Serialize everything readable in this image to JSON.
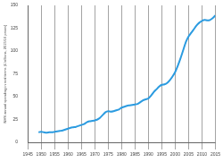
{
  "chart_data": {
    "type": "line",
    "y_label": "NHS annual spending in real terms (£ billions, 2015/16 prices)",
    "x": [
      1949,
      1950,
      1951,
      1952,
      1953,
      1954,
      1955,
      1956,
      1957,
      1958,
      1959,
      1960,
      1961,
      1962,
      1963,
      1964,
      1965,
      1966,
      1967,
      1968,
      1969,
      1970,
      1971,
      1972,
      1973,
      1974,
      1975,
      1976,
      1977,
      1978,
      1979,
      1980,
      1981,
      1982,
      1983,
      1984,
      1985,
      1986,
      1987,
      1988,
      1989,
      1990,
      1991,
      1992,
      1993,
      1994,
      1995,
      1996,
      1997,
      1998,
      1999,
      2000,
      2001,
      2002,
      2003,
      2004,
      2005,
      2006,
      2007,
      2008,
      2009,
      2010,
      2011,
      2012,
      2013,
      2014,
      2015
    ],
    "values": [
      11,
      11.5,
      11,
      10.5,
      11,
      11,
      11.5,
      12,
      12.5,
      13,
      14,
      15,
      16,
      16.5,
      17,
      18,
      19,
      20,
      22,
      23,
      23.5,
      24,
      25,
      27,
      30,
      33,
      34,
      33.5,
      34,
      35,
      36,
      38,
      39,
      40,
      40.5,
      41,
      41.5,
      42,
      44,
      46,
      47,
      48,
      51,
      55,
      58,
      61,
      63,
      63.5,
      65,
      68,
      72,
      77,
      84,
      92,
      101,
      110,
      116,
      120,
      124,
      128,
      131,
      133,
      134,
      133.5,
      134,
      136,
      139
    ],
    "color": "#2b9be0",
    "xlim": [
      1945,
      2015
    ],
    "xticks": [
      1945,
      1950,
      1955,
      1960,
      1965,
      1970,
      1975,
      1980,
      1985,
      1990,
      1995,
      2000,
      2005,
      2010,
      2015
    ],
    "ylim": [
      0,
      150
    ],
    "yticks": [
      0,
      25,
      50,
      75,
      100,
      125,
      150
    ],
    "grid": true
  }
}
